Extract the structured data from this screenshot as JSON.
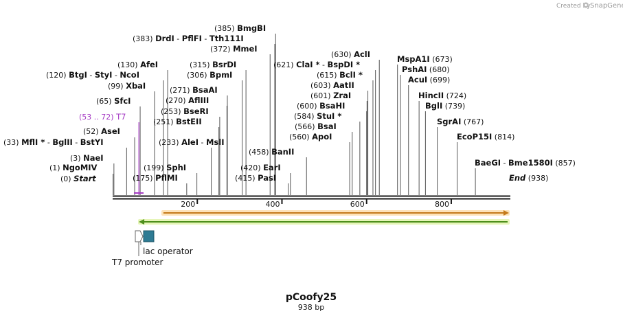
{
  "credit": {
    "text": "Created by",
    "brand": "SnapGene",
    "logo_icon": "snapgene-logo-icon"
  },
  "plasmid": {
    "name": "pCoofy25",
    "length_label": "938 bp",
    "length": 938
  },
  "axis": {
    "ticks": [
      200,
      400,
      600,
      800
    ]
  },
  "sites": [
    {
      "id": "start",
      "pos": "(0)",
      "bp": 0,
      "names": [
        "Start"
      ],
      "italic": true
    },
    {
      "id": "ngomiv",
      "pos": "(1)",
      "bp": 1,
      "names": [
        "NgoMIV"
      ]
    },
    {
      "id": "naei",
      "pos": "(3)",
      "bp": 3,
      "names": [
        "NaeI"
      ]
    },
    {
      "id": "mfli",
      "pos": "(33)",
      "bp": 33,
      "names": [
        "MflI *",
        "BglII",
        "BstYI"
      ]
    },
    {
      "id": "asei",
      "pos": "(52)",
      "bp": 52,
      "names": [
        "AseI"
      ]
    },
    {
      "id": "t7",
      "pos": "(53 .. 72)",
      "bp": 62,
      "names": [
        "T7"
      ],
      "purple": true
    },
    {
      "id": "sfci",
      "pos": "(65)",
      "bp": 65,
      "names": [
        "SfcI"
      ]
    },
    {
      "id": "xbai",
      "pos": "(99)",
      "bp": 99,
      "names": [
        "XbaI"
      ]
    },
    {
      "id": "btgi",
      "pos": "(120)",
      "bp": 120,
      "names": [
        "BtgI",
        "StyI",
        "NcoI"
      ]
    },
    {
      "id": "afei",
      "pos": "(130)",
      "bp": 130,
      "names": [
        "AfeI"
      ]
    },
    {
      "id": "pflmi",
      "pos": "(175)",
      "bp": 175,
      "names": [
        "PflMI"
      ]
    },
    {
      "id": "sphi",
      "pos": "(199)",
      "bp": 199,
      "names": [
        "SphI"
      ]
    },
    {
      "id": "alei",
      "pos": "(233)",
      "bp": 233,
      "names": [
        "AleI",
        "MslI"
      ]
    },
    {
      "id": "bsteii",
      "pos": "(251)",
      "bp": 251,
      "names": [
        "BstEII"
      ]
    },
    {
      "id": "bseri",
      "pos": "(253)",
      "bp": 253,
      "names": [
        "BseRI"
      ]
    },
    {
      "id": "afliii",
      "pos": "(270)",
      "bp": 270,
      "names": [
        "AflIII"
      ]
    },
    {
      "id": "bsaai",
      "pos": "(271)",
      "bp": 271,
      "names": [
        "BsaAI"
      ]
    },
    {
      "id": "bpmi",
      "pos": "(306)",
      "bp": 306,
      "names": [
        "BpmI"
      ]
    },
    {
      "id": "bsrdi",
      "pos": "(315)",
      "bp": 315,
      "names": [
        "BsrDI"
      ]
    },
    {
      "id": "mmei",
      "pos": "(372)",
      "bp": 372,
      "names": [
        "MmeI"
      ]
    },
    {
      "id": "drdi",
      "pos": "(383)",
      "bp": 383,
      "names": [
        "DrdI",
        "PflFI",
        "Tth111I"
      ]
    },
    {
      "id": "bmgbi",
      "pos": "(385)",
      "bp": 385,
      "names": [
        "BmgBI"
      ]
    },
    {
      "id": "pasi",
      "pos": "(415)",
      "bp": 415,
      "names": [
        "PasI"
      ]
    },
    {
      "id": "eari",
      "pos": "(420)",
      "bp": 420,
      "names": [
        "EarI"
      ]
    },
    {
      "id": "banii",
      "pos": "(458)",
      "bp": 458,
      "names": [
        "BanII"
      ]
    },
    {
      "id": "apoi",
      "pos": "(560)",
      "bp": 560,
      "names": [
        "ApoI"
      ]
    },
    {
      "id": "bsai",
      "pos": "(566)",
      "bp": 566,
      "names": [
        "BsaI"
      ]
    },
    {
      "id": "stui",
      "pos": "(584)",
      "bp": 584,
      "names": [
        "StuI *"
      ]
    },
    {
      "id": "bsahi",
      "pos": "(600)",
      "bp": 600,
      "names": [
        "BsaHI"
      ]
    },
    {
      "id": "zrai",
      "pos": "(601)",
      "bp": 601,
      "names": [
        "ZraI"
      ]
    },
    {
      "id": "aatii",
      "pos": "(603)",
      "bp": 603,
      "names": [
        "AatII"
      ]
    },
    {
      "id": "bcli",
      "pos": "(615)",
      "bp": 615,
      "names": [
        "BclI *"
      ]
    },
    {
      "id": "clai",
      "pos": "(621)",
      "bp": 621,
      "names": [
        "ClaI *",
        "BspDI *"
      ]
    },
    {
      "id": "acli",
      "pos": "(630)",
      "bp": 630,
      "names": [
        "AclI"
      ]
    },
    {
      "id": "mspa1i",
      "pos": "(673)",
      "bp": 673,
      "names": [
        "MspA1I"
      ]
    },
    {
      "id": "pshai",
      "pos": "(680)",
      "bp": 680,
      "names": [
        "PshAI"
      ]
    },
    {
      "id": "acui",
      "pos": "(699)",
      "bp": 699,
      "names": [
        "AcuI"
      ]
    },
    {
      "id": "hincii",
      "pos": "(724)",
      "bp": 724,
      "names": [
        "HincII"
      ]
    },
    {
      "id": "bgli",
      "pos": "(739)",
      "bp": 739,
      "names": [
        "BglI"
      ]
    },
    {
      "id": "sgrai",
      "pos": "(767)",
      "bp": 767,
      "names": [
        "SgrAI"
      ]
    },
    {
      "id": "ecop15i",
      "pos": "(814)",
      "bp": 814,
      "names": [
        "EcoP15I"
      ]
    },
    {
      "id": "baegi",
      "pos": "(857)",
      "bp": 857,
      "names": [
        "BaeGI",
        "Bme1580I"
      ]
    },
    {
      "id": "end",
      "pos": "(938)",
      "bp": 938,
      "names": [
        "End"
      ],
      "italic": true
    }
  ],
  "features": [
    {
      "id": "orange-arrow",
      "start": 120,
      "end": 938,
      "fill": "#f6b26b",
      "stroke": "#c47a1a",
      "glow": "#fde3b8"
    },
    {
      "id": "green-arrow",
      "start": 65,
      "end": 938,
      "fill": "#7fcc3a",
      "stroke": "#4d8f1c",
      "glow": "#e6f5b8",
      "reverse": true
    }
  ],
  "elements": [
    {
      "id": "t7-promoter",
      "label": "T7 promoter",
      "color": "#ffffff"
    },
    {
      "id": "lac-operator",
      "label": "lac operator",
      "color": "#2e7b94"
    }
  ],
  "colors": {
    "purple": "#a53bc4",
    "backbone": "#1a1a1a"
  }
}
